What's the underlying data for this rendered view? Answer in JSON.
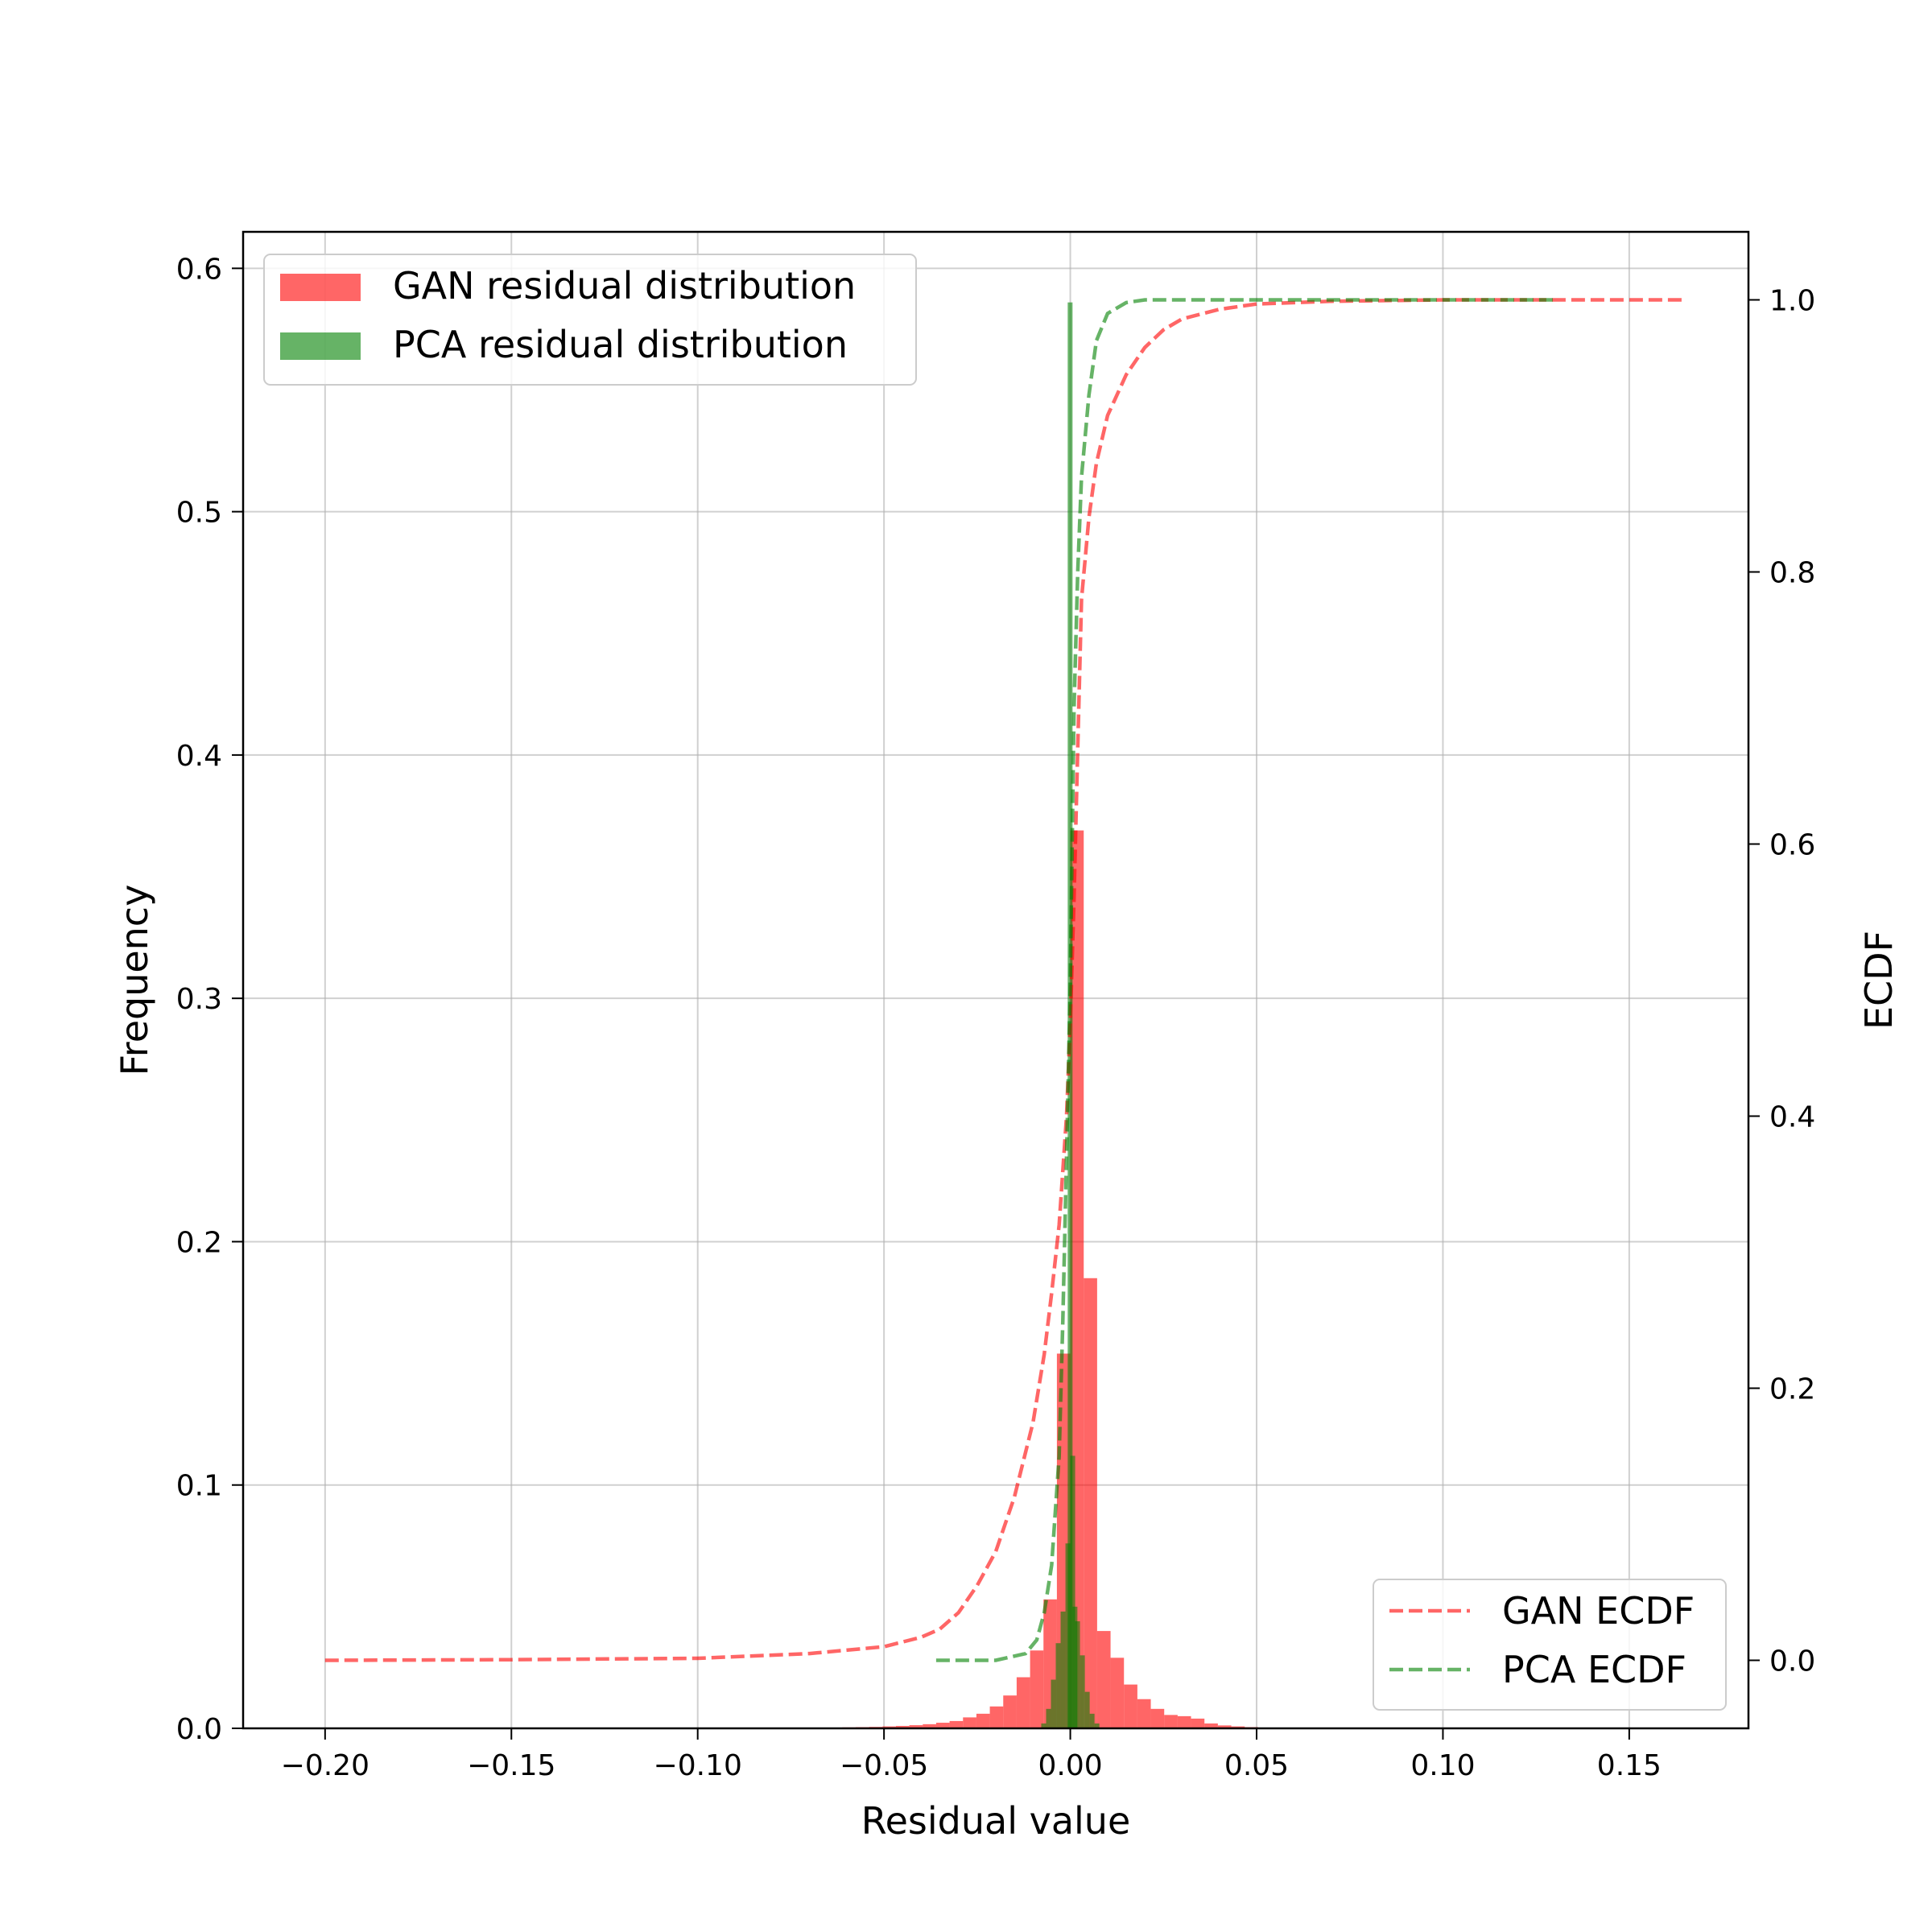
{
  "chart_data": {
    "type": "bar",
    "title": "",
    "xlabel": "Residual value",
    "ylabel": "Frequency",
    "y2label": "ECDF",
    "xlim": [
      -0.222,
      0.182
    ],
    "ylim": [
      0,
      0.615
    ],
    "y2lim": [
      -0.05,
      1.05
    ],
    "x_ticks": [
      -0.2,
      -0.15,
      -0.1,
      -0.05,
      0.0,
      0.05,
      0.1,
      0.15
    ],
    "x_tick_labels": [
      "−0.20",
      "−0.15",
      "−0.10",
      "−0.05",
      "0.00",
      "0.05",
      "0.10",
      "0.15"
    ],
    "y_ticks": [
      0.0,
      0.1,
      0.2,
      0.3,
      0.4,
      0.5,
      0.6
    ],
    "y_tick_labels": [
      "0.0",
      "0.1",
      "0.2",
      "0.3",
      "0.4",
      "0.5",
      "0.6"
    ],
    "y2_ticks": [
      0.0,
      0.2,
      0.4,
      0.6,
      0.8,
      1.0
    ],
    "y2_tick_labels": [
      "0.0",
      "0.2",
      "0.4",
      "0.6",
      "0.8",
      "1.0"
    ],
    "grid": true,
    "legend_histograms": {
      "placement": "top-left",
      "entries": [
        "GAN residual distribution",
        "PCA residual distribution"
      ]
    },
    "legend_ecdf": {
      "placement": "bottom-right",
      "entries": [
        "GAN ECDF",
        "PCA ECDF"
      ]
    },
    "colors": {
      "gan": "#ff0000",
      "pca": "#008000"
    },
    "histograms": [
      {
        "name": "GAN residual distribution",
        "bin_width": 0.0036,
        "bin_starts": [
          -0.0648,
          -0.0612,
          -0.0576,
          -0.054,
          -0.0504,
          -0.0468,
          -0.0432,
          -0.0396,
          -0.036,
          -0.0324,
          -0.0288,
          -0.0252,
          -0.0216,
          -0.018,
          -0.0144,
          -0.0108,
          -0.0072,
          -0.0036,
          0.0,
          0.0036,
          0.0072,
          0.0108,
          0.0144,
          0.018,
          0.0216,
          0.0252,
          0.0288,
          0.0324,
          0.036,
          0.0396,
          0.0432,
          0.0468,
          0.0504,
          0.054,
          0.0576
        ],
        "values": [
          0.0003,
          0.0004,
          0.0005,
          0.0006,
          0.0008,
          0.001,
          0.0013,
          0.0017,
          0.0023,
          0.003,
          0.0045,
          0.006,
          0.009,
          0.0135,
          0.021,
          0.032,
          0.053,
          0.154,
          0.369,
          0.185,
          0.04,
          0.029,
          0.018,
          0.012,
          0.008,
          0.0055,
          0.005,
          0.004,
          0.002,
          0.0012,
          0.0008,
          0.0005,
          0.0003,
          0.0002,
          0.0001
        ]
      },
      {
        "name": "PCA residual distribution",
        "bin_width": 0.0013,
        "bin_starts": [
          -0.0078,
          -0.0065,
          -0.0052,
          -0.0039,
          -0.0026,
          -0.0013,
          -0.0007,
          0.0,
          0.0006,
          0.0013,
          0.0026,
          0.0039,
          0.0052,
          0.0065
        ],
        "values": [
          0.002,
          0.008,
          0.02,
          0.035,
          0.048,
          0.076,
          0.586,
          0.112,
          0.05,
          0.044,
          0.03,
          0.015,
          0.006,
          0.002
        ]
      }
    ],
    "series": [
      {
        "name": "GAN ECDF",
        "x": [
          -0.2,
          -0.15,
          -0.1,
          -0.07,
          -0.05,
          -0.04,
          -0.035,
          -0.03,
          -0.025,
          -0.02,
          -0.015,
          -0.01,
          -0.007,
          -0.005,
          -0.003,
          -0.001,
          0.0,
          0.001,
          0.002,
          0.003,
          0.005,
          0.007,
          0.01,
          0.015,
          0.02,
          0.025,
          0.03,
          0.04,
          0.05,
          0.07,
          0.1,
          0.13,
          0.165
        ],
        "y": [
          0.0,
          0.0005,
          0.0015,
          0.005,
          0.01,
          0.017,
          0.023,
          0.035,
          0.055,
          0.08,
          0.12,
          0.175,
          0.225,
          0.27,
          0.32,
          0.4,
          0.47,
          0.56,
          0.67,
          0.78,
          0.84,
          0.88,
          0.915,
          0.945,
          0.965,
          0.978,
          0.986,
          0.993,
          0.997,
          0.999,
          1.0,
          1.0,
          1.0
        ]
      },
      {
        "name": "PCA ECDF",
        "x": [
          -0.036,
          -0.02,
          -0.012,
          -0.009,
          -0.007,
          -0.005,
          -0.003,
          -0.002,
          -0.001,
          0.0,
          0.0005,
          0.001,
          0.002,
          0.003,
          0.005,
          0.007,
          0.01,
          0.015,
          0.02,
          0.05,
          0.1,
          0.13
        ],
        "y": [
          0.0,
          0.0,
          0.005,
          0.015,
          0.035,
          0.07,
          0.15,
          0.25,
          0.37,
          0.5,
          0.6,
          0.7,
          0.8,
          0.87,
          0.93,
          0.97,
          0.99,
          0.998,
          1.0,
          1.0,
          1.0,
          1.0
        ]
      }
    ]
  }
}
